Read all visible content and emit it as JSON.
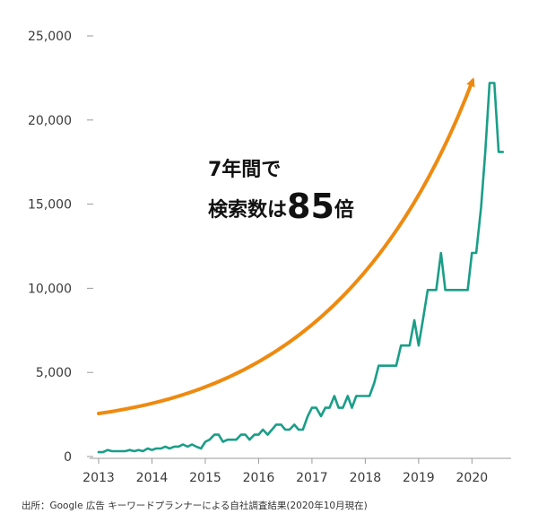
{
  "chart_data": {
    "type": "line",
    "title": "",
    "xlabel": "",
    "ylabel": "",
    "xlim": [
      2013,
      2020.65
    ],
    "ylim": [
      0,
      25000
    ],
    "x_ticks": [
      2013,
      2014,
      2015,
      2016,
      2017,
      2018,
      2019,
      2020
    ],
    "x_tick_labels": [
      "2013",
      "2014",
      "2015",
      "2016",
      "2017",
      "2018",
      "2019",
      "2020"
    ],
    "y_ticks": [
      0,
      5000,
      10000,
      15000,
      20000,
      25000
    ],
    "y_tick_labels": [
      "0",
      "5,000",
      "10,000",
      "15,000",
      "20,000",
      "25,000"
    ],
    "grid": false,
    "series": [
      {
        "color": "#1a9e88",
        "x": [
          2013.0,
          2013.08,
          2013.17,
          2013.25,
          2013.33,
          2013.42,
          2013.5,
          2013.58,
          2013.67,
          2013.75,
          2013.83,
          2013.92,
          2014.0,
          2014.08,
          2014.17,
          2014.25,
          2014.33,
          2014.42,
          2014.5,
          2014.58,
          2014.67,
          2014.75,
          2014.83,
          2014.92,
          2015.0,
          2015.08,
          2015.17,
          2015.25,
          2015.33,
          2015.42,
          2015.5,
          2015.58,
          2015.67,
          2015.75,
          2015.83,
          2015.92,
          2016.0,
          2016.08,
          2016.17,
          2016.25,
          2016.33,
          2016.42,
          2016.5,
          2016.58,
          2016.67,
          2016.75,
          2016.83,
          2016.92,
          2017.0,
          2017.08,
          2017.17,
          2017.25,
          2017.33,
          2017.42,
          2017.5,
          2017.58,
          2017.67,
          2017.75,
          2017.83,
          2017.92,
          2018.0,
          2018.08,
          2018.17,
          2018.25,
          2018.33,
          2018.42,
          2018.5,
          2018.58,
          2018.67,
          2018.75,
          2018.83,
          2018.92,
          2019.0,
          2019.08,
          2019.17,
          2019.25,
          2019.33,
          2019.42,
          2019.5,
          2019.58,
          2019.67,
          2019.75,
          2019.83,
          2019.92,
          2020.0,
          2020.08,
          2020.17,
          2020.25,
          2020.33,
          2020.42,
          2020.5,
          2020.58
        ],
        "values": [
          260,
          260,
          390,
          320,
          320,
          320,
          320,
          390,
          320,
          390,
          320,
          480,
          390,
          480,
          480,
          590,
          480,
          590,
          590,
          720,
          590,
          720,
          590,
          480,
          880,
          1000,
          1300,
          1300,
          880,
          1000,
          1000,
          1000,
          1300,
          1300,
          1000,
          1300,
          1300,
          1600,
          1300,
          1600,
          1900,
          1900,
          1600,
          1600,
          1900,
          1600,
          1600,
          2400,
          2900,
          2900,
          2400,
          2900,
          2900,
          3600,
          2900,
          2900,
          3600,
          2900,
          3600,
          3600,
          3600,
          3600,
          4400,
          5400,
          5400,
          5400,
          5400,
          5400,
          6600,
          6600,
          6600,
          8100,
          6600,
          8100,
          9900,
          9900,
          9900,
          12100,
          9900,
          9900,
          9900,
          9900,
          9900,
          9900,
          12100,
          12100,
          14800,
          18100,
          22200,
          22200,
          18100,
          18100
        ]
      }
    ],
    "annotation": {
      "line1": "7年間で",
      "line2_prefix": "検索数は",
      "line2_number": "85",
      "line2_suffix": "倍",
      "arrow_color": "#ee8a10"
    },
    "source_note": "出所：Google 広告 キーワードプランナーによる自社調査結果(2020年10月現在)"
  }
}
